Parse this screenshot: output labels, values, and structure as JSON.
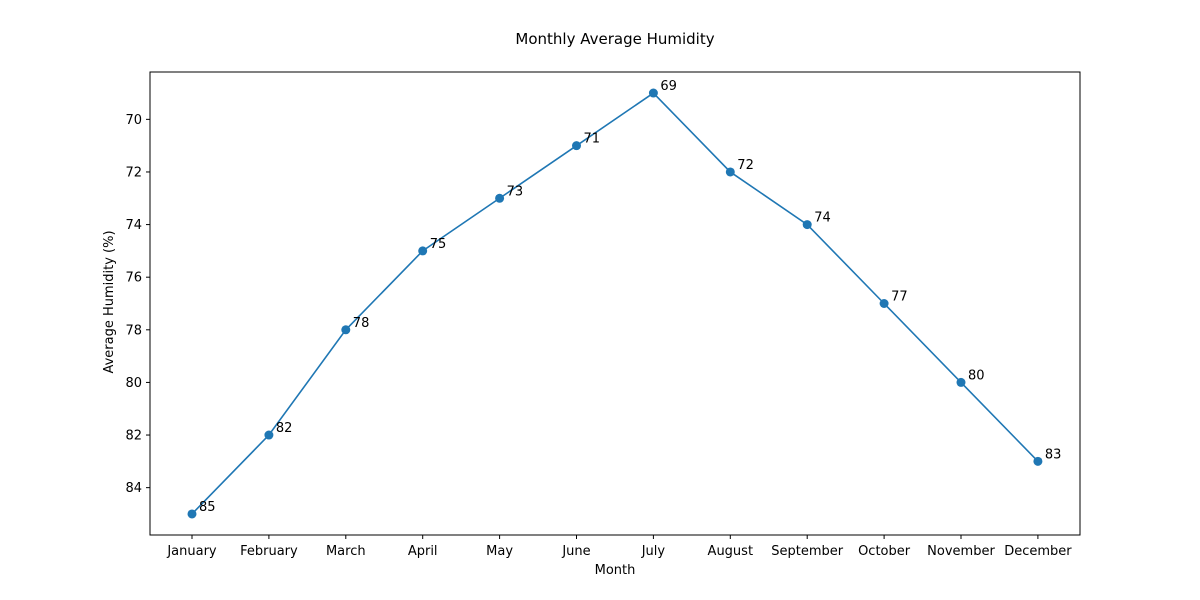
{
  "chart_data": {
    "type": "line",
    "title": "Monthly Average Humidity",
    "xlabel": "Month",
    "ylabel": "Average Humidity (%)",
    "categories": [
      "January",
      "February",
      "March",
      "April",
      "May",
      "June",
      "July",
      "August",
      "September",
      "October",
      "November",
      "December"
    ],
    "series": [
      {
        "values": [
          85,
          82,
          78,
          75,
          73,
          71,
          69,
          72,
          74,
          77,
          80,
          83
        ],
        "color": "#1f77b4"
      }
    ],
    "y_ticks": [
      "70",
      "72",
      "74",
      "76",
      "78",
      "80",
      "82",
      "84"
    ],
    "ylim": [
      85.8,
      68.2
    ],
    "y_inverted": true,
    "grid": false,
    "legend": "none"
  }
}
